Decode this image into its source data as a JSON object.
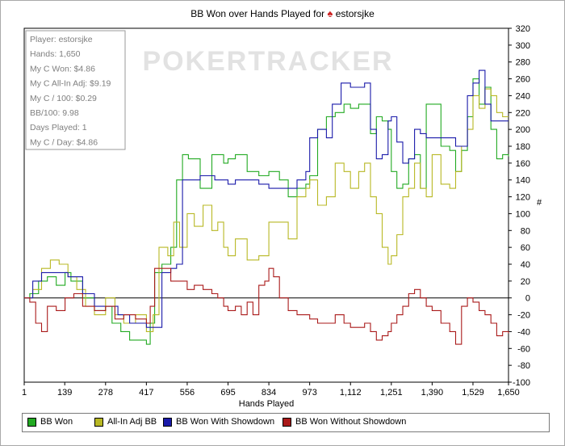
{
  "title": {
    "text": "BB Won over Hands Played for",
    "player": "estorsjke",
    "suit_icon": "spade-icon"
  },
  "watermark": "POKERTRACKER",
  "stats": [
    "Player: estorsjke",
    "Hands: 1,650",
    "My C Won: $4.86",
    "My C All-In Adj: $9.19",
    "My C / 100: $0.29",
    "BB/100: 9.98",
    "Days Played: 1",
    "My C / Day: $4.86"
  ],
  "chart_data": {
    "type": "line",
    "xlabel": "Hands Played",
    "ylabel": "#",
    "xlim": [
      1,
      1650
    ],
    "ylim": [
      -100,
      320
    ],
    "x_ticks": [
      "1",
      "139",
      "278",
      "417",
      "556",
      "695",
      "834",
      "973",
      "1,112",
      "1,251",
      "1,390",
      "1,529",
      "1,650"
    ],
    "y_ticks": [
      "320",
      "300",
      "280",
      "260",
      "240",
      "220",
      "200",
      "180",
      "160",
      "140",
      "120",
      "100",
      "80",
      "60",
      "40",
      "20",
      "0",
      "-20",
      "-40",
      "-60",
      "-80",
      "-100"
    ],
    "series": [
      {
        "name": "BB Won",
        "color": "#22aa22",
        "points": [
          [
            1,
            0
          ],
          [
            20,
            5
          ],
          [
            50,
            20
          ],
          [
            80,
            25
          ],
          [
            110,
            15
          ],
          [
            140,
            30
          ],
          [
            160,
            20
          ],
          [
            200,
            0
          ],
          [
            240,
            -15
          ],
          [
            278,
            -10
          ],
          [
            300,
            -30
          ],
          [
            330,
            -40
          ],
          [
            360,
            -50
          ],
          [
            417,
            -55
          ],
          [
            430,
            -30
          ],
          [
            445,
            30
          ],
          [
            470,
            40
          ],
          [
            500,
            60
          ],
          [
            520,
            140
          ],
          [
            540,
            170
          ],
          [
            560,
            165
          ],
          [
            600,
            130
          ],
          [
            640,
            170
          ],
          [
            680,
            160
          ],
          [
            695,
            165
          ],
          [
            720,
            170
          ],
          [
            760,
            150
          ],
          [
            800,
            145
          ],
          [
            834,
            150
          ],
          [
            870,
            140
          ],
          [
            900,
            120
          ],
          [
            930,
            130
          ],
          [
            960,
            135
          ],
          [
            973,
            145
          ],
          [
            1000,
            200
          ],
          [
            1030,
            215
          ],
          [
            1060,
            220
          ],
          [
            1090,
            230
          ],
          [
            1112,
            225
          ],
          [
            1140,
            230
          ],
          [
            1160,
            230
          ],
          [
            1180,
            195
          ],
          [
            1200,
            215
          ],
          [
            1220,
            210
          ],
          [
            1240,
            200
          ],
          [
            1251,
            150
          ],
          [
            1270,
            130
          ],
          [
            1290,
            135
          ],
          [
            1310,
            165
          ],
          [
            1330,
            170
          ],
          [
            1350,
            130
          ],
          [
            1370,
            230
          ],
          [
            1390,
            230
          ],
          [
            1420,
            180
          ],
          [
            1450,
            175
          ],
          [
            1470,
            150
          ],
          [
            1490,
            175
          ],
          [
            1510,
            215
          ],
          [
            1529,
            260
          ],
          [
            1550,
            230
          ],
          [
            1570,
            250
          ],
          [
            1590,
            200
          ],
          [
            1610,
            165
          ],
          [
            1630,
            170
          ],
          [
            1650,
            168
          ]
        ]
      },
      {
        "name": "All-In Adj BB",
        "color": "#b8b824",
        "points": [
          [
            1,
            0
          ],
          [
            30,
            10
          ],
          [
            60,
            35
          ],
          [
            90,
            45
          ],
          [
            120,
            40
          ],
          [
            150,
            25
          ],
          [
            180,
            10
          ],
          [
            210,
            -10
          ],
          [
            240,
            -20
          ],
          [
            278,
            0
          ],
          [
            310,
            -20
          ],
          [
            340,
            -30
          ],
          [
            380,
            -20
          ],
          [
            417,
            -40
          ],
          [
            440,
            -20
          ],
          [
            460,
            60
          ],
          [
            490,
            50
          ],
          [
            510,
            90
          ],
          [
            530,
            60
          ],
          [
            556,
            100
          ],
          [
            580,
            85
          ],
          [
            610,
            110
          ],
          [
            640,
            80
          ],
          [
            660,
            90
          ],
          [
            680,
            60
          ],
          [
            695,
            50
          ],
          [
            720,
            70
          ],
          [
            760,
            45
          ],
          [
            800,
            50
          ],
          [
            834,
            90
          ],
          [
            870,
            90
          ],
          [
            900,
            70
          ],
          [
            930,
            120
          ],
          [
            960,
            130
          ],
          [
            973,
            140
          ],
          [
            1000,
            110
          ],
          [
            1030,
            120
          ],
          [
            1060,
            160
          ],
          [
            1090,
            150
          ],
          [
            1112,
            130
          ],
          [
            1140,
            150
          ],
          [
            1160,
            160
          ],
          [
            1180,
            120
          ],
          [
            1200,
            100
          ],
          [
            1220,
            60
          ],
          [
            1240,
            40
          ],
          [
            1251,
            50
          ],
          [
            1270,
            75
          ],
          [
            1290,
            120
          ],
          [
            1310,
            130
          ],
          [
            1330,
            160
          ],
          [
            1350,
            130
          ],
          [
            1370,
            120
          ],
          [
            1390,
            170
          ],
          [
            1420,
            135
          ],
          [
            1450,
            130
          ],
          [
            1470,
            150
          ],
          [
            1490,
            180
          ],
          [
            1510,
            200
          ],
          [
            1529,
            240
          ],
          [
            1550,
            225
          ],
          [
            1570,
            248
          ],
          [
            1590,
            240
          ],
          [
            1610,
            220
          ],
          [
            1630,
            215
          ],
          [
            1650,
            215
          ]
        ]
      },
      {
        "name": "BB Won With Showdown",
        "color": "#1a1aaa",
        "points": [
          [
            1,
            0
          ],
          [
            30,
            20
          ],
          [
            60,
            30
          ],
          [
            100,
            30
          ],
          [
            150,
            25
          ],
          [
            200,
            5
          ],
          [
            240,
            -10
          ],
          [
            278,
            -10
          ],
          [
            320,
            -20
          ],
          [
            360,
            -30
          ],
          [
            417,
            -35
          ],
          [
            440,
            -35
          ],
          [
            470,
            30
          ],
          [
            500,
            35
          ],
          [
            520,
            40
          ],
          [
            540,
            140
          ],
          [
            560,
            140
          ],
          [
            600,
            145
          ],
          [
            650,
            140
          ],
          [
            695,
            135
          ],
          [
            720,
            140
          ],
          [
            760,
            140
          ],
          [
            800,
            135
          ],
          [
            834,
            130
          ],
          [
            870,
            130
          ],
          [
            900,
            130
          ],
          [
            930,
            140
          ],
          [
            960,
            150
          ],
          [
            973,
            190
          ],
          [
            1000,
            200
          ],
          [
            1030,
            190
          ],
          [
            1050,
            230
          ],
          [
            1080,
            255
          ],
          [
            1112,
            250
          ],
          [
            1140,
            250
          ],
          [
            1160,
            255
          ],
          [
            1180,
            200
          ],
          [
            1200,
            165
          ],
          [
            1220,
            170
          ],
          [
            1240,
            210
          ],
          [
            1251,
            215
          ],
          [
            1270,
            185
          ],
          [
            1290,
            160
          ],
          [
            1310,
            165
          ],
          [
            1330,
            200
          ],
          [
            1350,
            195
          ],
          [
            1370,
            190
          ],
          [
            1390,
            190
          ],
          [
            1420,
            190
          ],
          [
            1450,
            190
          ],
          [
            1470,
            180
          ],
          [
            1490,
            180
          ],
          [
            1510,
            240
          ],
          [
            1529,
            255
          ],
          [
            1550,
            270
          ],
          [
            1570,
            230
          ],
          [
            1590,
            210
          ],
          [
            1610,
            210
          ],
          [
            1630,
            210
          ],
          [
            1650,
            210
          ]
        ]
      },
      {
        "name": "BB Won Without Showdown",
        "color": "#aa1a1a",
        "points": [
          [
            1,
            0
          ],
          [
            20,
            -5
          ],
          [
            40,
            -30
          ],
          [
            60,
            -40
          ],
          [
            80,
            -10
          ],
          [
            110,
            -15
          ],
          [
            140,
            0
          ],
          [
            170,
            5
          ],
          [
            200,
            -10
          ],
          [
            240,
            -15
          ],
          [
            278,
            -10
          ],
          [
            310,
            -25
          ],
          [
            340,
            -20
          ],
          [
            380,
            -25
          ],
          [
            417,
            -30
          ],
          [
            430,
            -10
          ],
          [
            445,
            35
          ],
          [
            470,
            35
          ],
          [
            500,
            20
          ],
          [
            520,
            20
          ],
          [
            556,
            10
          ],
          [
            580,
            15
          ],
          [
            610,
            10
          ],
          [
            640,
            5
          ],
          [
            660,
            0
          ],
          [
            680,
            -10
          ],
          [
            695,
            -15
          ],
          [
            720,
            -10
          ],
          [
            740,
            -20
          ],
          [
            760,
            -5
          ],
          [
            780,
            -20
          ],
          [
            800,
            15
          ],
          [
            820,
            20
          ],
          [
            834,
            35
          ],
          [
            850,
            25
          ],
          [
            870,
            0
          ],
          [
            900,
            -15
          ],
          [
            930,
            -20
          ],
          [
            973,
            -25
          ],
          [
            1000,
            -30
          ],
          [
            1030,
            -30
          ],
          [
            1060,
            -20
          ],
          [
            1090,
            -30
          ],
          [
            1112,
            -35
          ],
          [
            1140,
            -35
          ],
          [
            1160,
            -30
          ],
          [
            1180,
            -40
          ],
          [
            1200,
            -50
          ],
          [
            1220,
            -45
          ],
          [
            1240,
            -40
          ],
          [
            1251,
            -30
          ],
          [
            1270,
            -20
          ],
          [
            1290,
            -10
          ],
          [
            1310,
            5
          ],
          [
            1330,
            10
          ],
          [
            1350,
            0
          ],
          [
            1370,
            -10
          ],
          [
            1390,
            -15
          ],
          [
            1420,
            -30
          ],
          [
            1450,
            -40
          ],
          [
            1470,
            -55
          ],
          [
            1490,
            -10
          ],
          [
            1510,
            0
          ],
          [
            1529,
            -5
          ],
          [
            1550,
            -15
          ],
          [
            1570,
            -20
          ],
          [
            1590,
            -30
          ],
          [
            1610,
            -45
          ],
          [
            1630,
            -40
          ],
          [
            1650,
            -42
          ]
        ]
      }
    ],
    "zero_line": 0,
    "grid": false,
    "legend_position": "bottom"
  },
  "legend": [
    {
      "label": "BB Won",
      "color": "#22aa22"
    },
    {
      "label": "All-In Adj BB",
      "color": "#b8b824"
    },
    {
      "label": "BB Won With Showdown",
      "color": "#1a1aaa"
    },
    {
      "label": "BB Won Without Showdown",
      "color": "#aa1a1a"
    }
  ]
}
